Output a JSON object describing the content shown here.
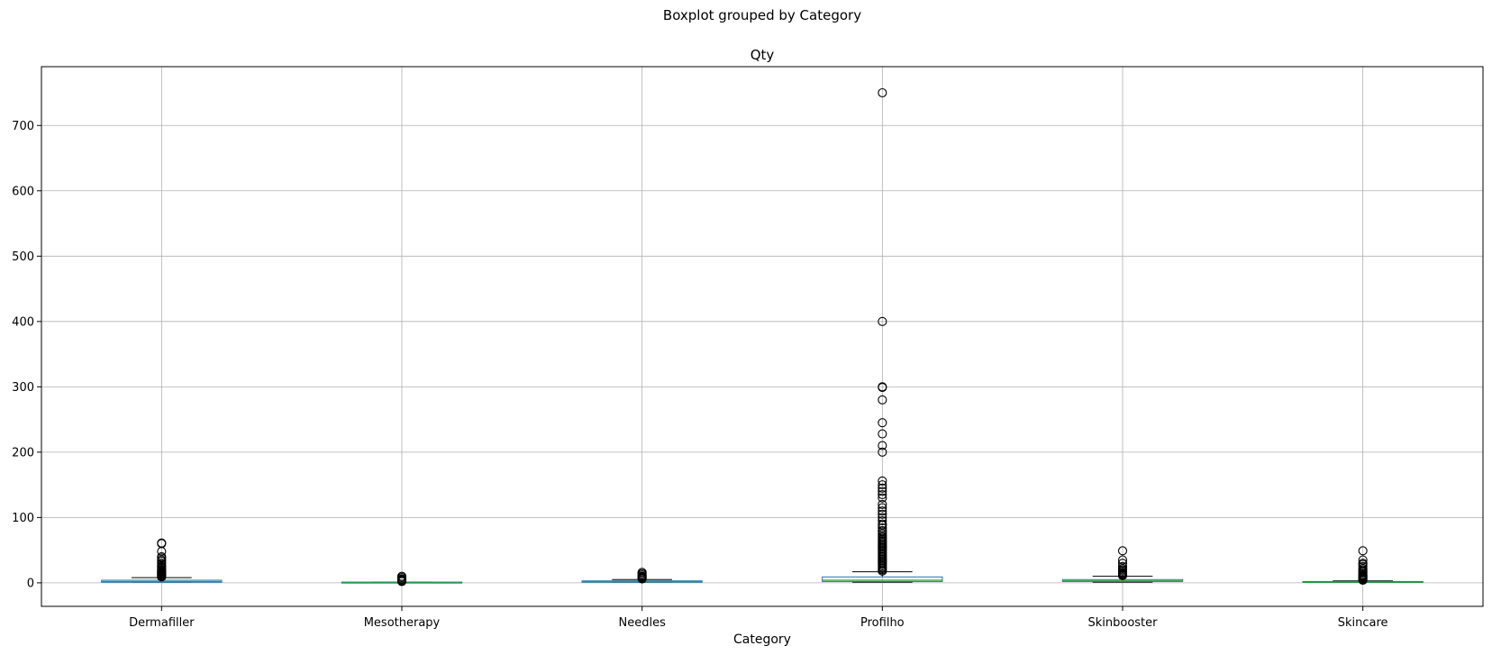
{
  "chart_data": {
    "type": "boxplot",
    "suptitle": "Boxplot grouped by Category",
    "title": "Qty",
    "xlabel": "Category",
    "ylabel": "",
    "ylim": [
      -36,
      790
    ],
    "yticks": [
      0,
      100,
      200,
      300,
      400,
      500,
      600,
      700
    ],
    "grid": true,
    "categories": [
      "Dermafiller",
      "Mesotherapy",
      "Needles",
      "Profilho",
      "Skinbooster",
      "Skincare"
    ],
    "boxes": [
      {
        "category": "Dermafiller",
        "q1": 1,
        "median": 2,
        "q3": 4,
        "whisker_low": 1,
        "whisker_high": 8,
        "outliers": [
          9,
          10,
          11,
          12,
          13,
          14,
          15,
          16,
          17,
          18,
          19,
          20,
          22,
          24,
          25,
          27,
          30,
          33,
          35,
          38,
          40,
          48,
          60,
          61
        ]
      },
      {
        "category": "Mesotherapy",
        "q1": 1,
        "median": 1,
        "q3": 1,
        "whisker_low": 1,
        "whisker_high": 1,
        "outliers": [
          2,
          3,
          4,
          5,
          6,
          8,
          10
        ]
      },
      {
        "category": "Needles",
        "q1": 1,
        "median": 2,
        "q3": 3,
        "whisker_low": 1,
        "whisker_high": 5,
        "outliers": [
          6,
          7,
          8,
          9,
          10,
          12,
          14,
          16
        ]
      },
      {
        "category": "Profilho",
        "q1": 2,
        "median": 4,
        "q3": 9,
        "whisker_low": 1,
        "whisker_high": 17,
        "outliers": [
          18,
          20,
          22,
          24,
          26,
          28,
          30,
          32,
          34,
          36,
          38,
          40,
          42,
          44,
          46,
          48,
          50,
          52,
          54,
          56,
          58,
          60,
          62,
          64,
          66,
          68,
          70,
          72,
          75,
          78,
          80,
          84,
          88,
          90,
          95,
          100,
          105,
          110,
          115,
          120,
          130,
          135,
          140,
          145,
          150,
          156,
          200,
          210,
          228,
          245,
          280,
          299,
          300,
          400,
          750
        ]
      },
      {
        "category": "Skinbooster",
        "q1": 2,
        "median": 3,
        "q3": 5,
        "whisker_low": 1,
        "whisker_high": 10,
        "outliers": [
          11,
          12,
          13,
          14,
          15,
          16,
          18,
          20,
          22,
          25,
          30,
          35,
          49
        ]
      },
      {
        "category": "Skincare",
        "q1": 1,
        "median": 1,
        "q3": 2,
        "whisker_low": 1,
        "whisker_high": 3,
        "outliers": [
          4,
          5,
          6,
          7,
          8,
          9,
          10,
          11,
          12,
          14,
          16,
          18,
          20,
          22,
          25,
          28,
          30,
          35,
          49
        ]
      }
    ],
    "colors": {
      "box": "#1f77b4",
      "median": "#2ca02c",
      "whisker": "#000000",
      "grid": "#b0b0b0",
      "outlier": "#000000"
    }
  }
}
